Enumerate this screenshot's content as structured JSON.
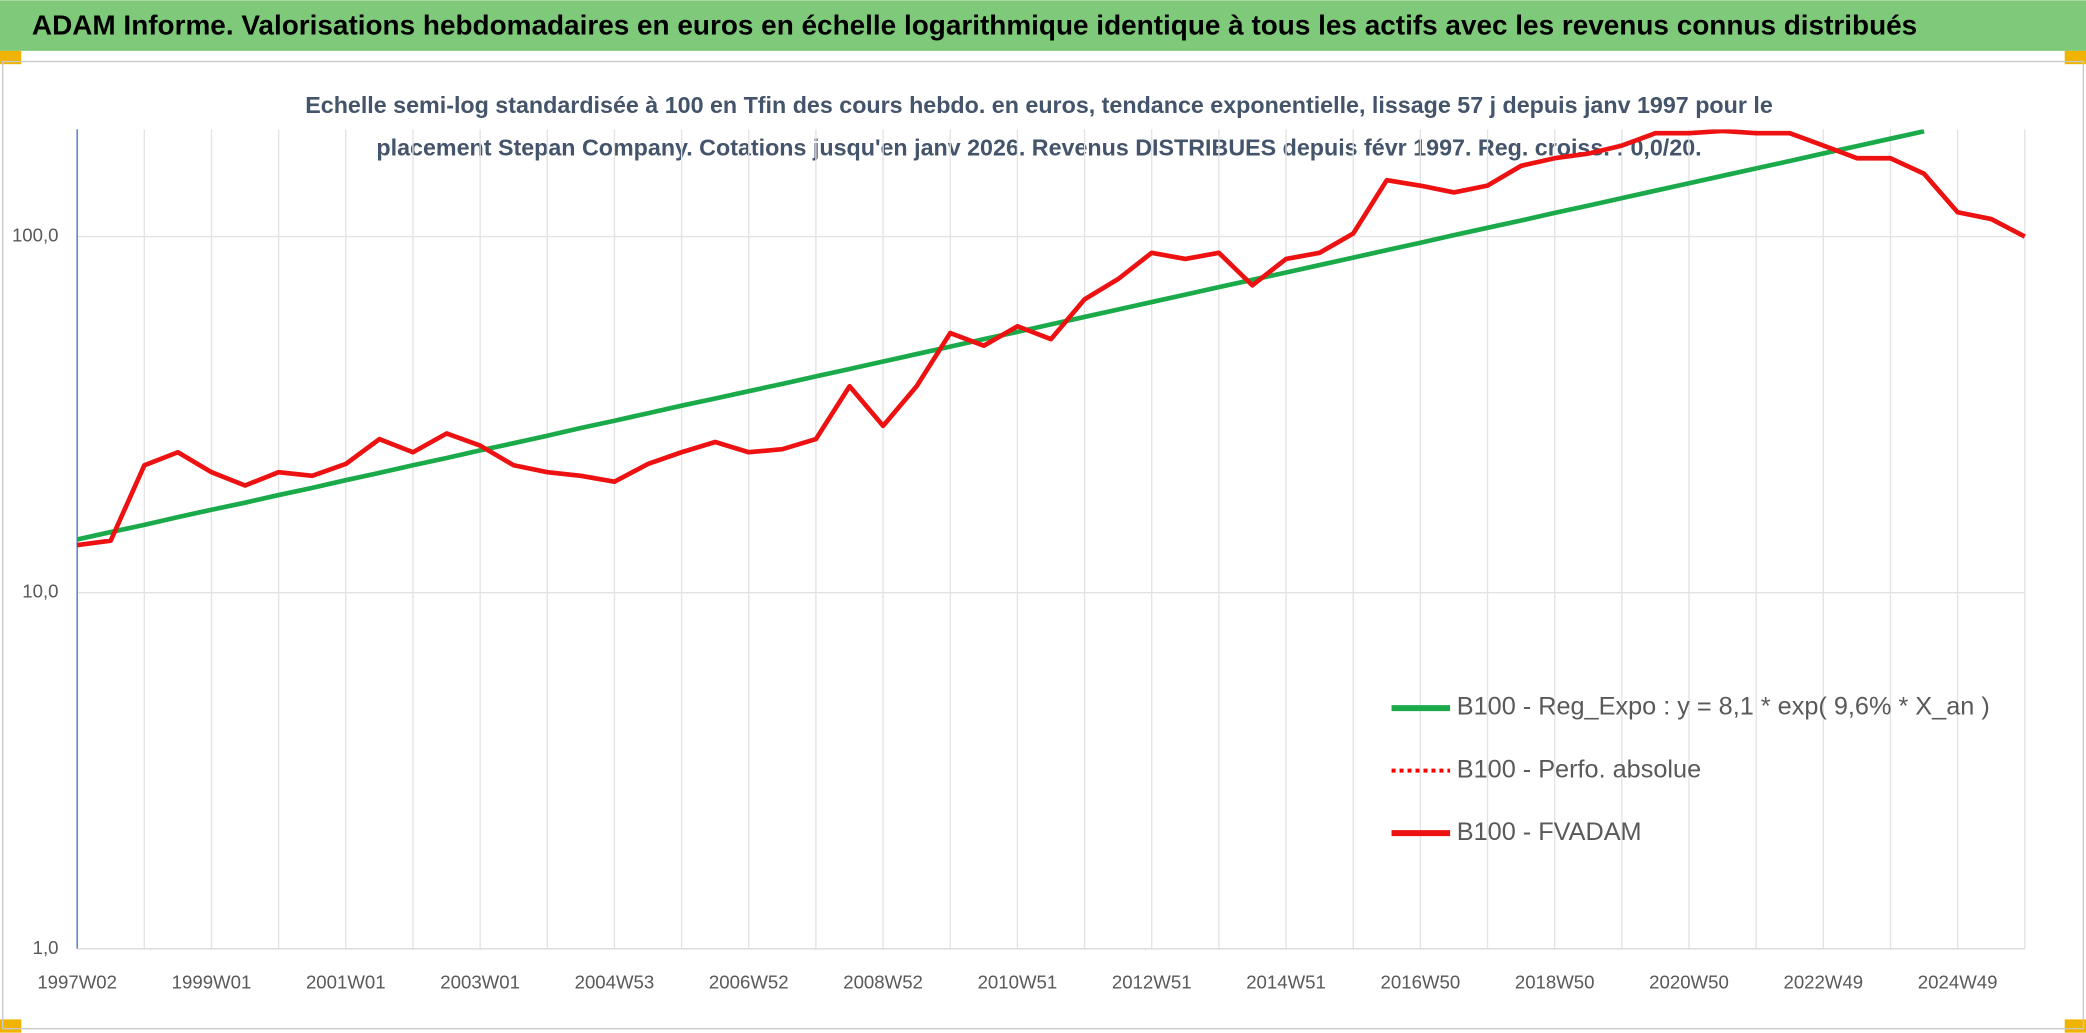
{
  "chart_data": {
    "type": "line",
    "title": "ADAM Informe. Valorisations hebdomadaires en euros en échelle logarithmique identique à tous les actifs avec les revenus connus distribués",
    "subtitle": [
      "Echelle semi-log standardisée à 100 en Tfin des cours hebdo. en euros, tendance exponentielle, lissage 57 j depuis janv 1997 pour le",
      "placement Stepan Company. Cotations jusqu'en janv 2026. Revenus DISTRIBUES depuis févr 1997. Reg. croiss. : 0,0/20."
    ],
    "log_scale": true,
    "grid": true,
    "legend": "lower right",
    "ylim": [
      1,
      200
    ],
    "yticks": [
      {
        "value": 1,
        "label": "1,0"
      },
      {
        "value": 10,
        "label": "10,0"
      },
      {
        "value": 100,
        "label": "100,0"
      }
    ],
    "categories": [
      "1997W02",
      null,
      null,
      null,
      "1999W01",
      null,
      null,
      null,
      "2001W01",
      null,
      null,
      null,
      "2003W01",
      null,
      null,
      null,
      "2004W53",
      null,
      null,
      null,
      "2006W52",
      null,
      null,
      null,
      "2008W52",
      null,
      null,
      null,
      "2010W51",
      null,
      null,
      null,
      "2012W51",
      null,
      null,
      null,
      "2014W51",
      null,
      null,
      null,
      "2016W50",
      null,
      null,
      null,
      "2018W50",
      null,
      null,
      null,
      "2020W50",
      null,
      null,
      null,
      "2022W49",
      null,
      null,
      null,
      "2024W49",
      null,
      null
    ],
    "series": [
      {
        "name": "B100 - Reg_Expo : y = 8,1 * exp( 9,6% *  X_an )",
        "color": "#1aaa4a",
        "style": "solid",
        "values": [
          14.1,
          14.8,
          15.5,
          16.3,
          17.1,
          17.9,
          18.8,
          19.7,
          20.7,
          21.7,
          22.8,
          23.9,
          25.1,
          26.3,
          27.6,
          29.0,
          30.4,
          31.9,
          33.5,
          35.1,
          36.8,
          38.6,
          40.5,
          42.5,
          44.6,
          46.8,
          49.1,
          51.5,
          54.0,
          56.7,
          59.5,
          62.4,
          65.5,
          68.7,
          72.1,
          75.6,
          79.3,
          83.2,
          87.3,
          91.6,
          96.1,
          100.9,
          105.8,
          111.0,
          116.5,
          122.2,
          128.2,
          134.5,
          141.2,
          148.1,
          155.4,
          163.0,
          171.1,
          179.5,
          188.3,
          197.6,
          null,
          null,
          null
        ]
      },
      {
        "name": "B100 - Perfo. absolue",
        "color": "#ff0000",
        "style": "dotted",
        "values": [
          13.6,
          14,
          22.8,
          24.8,
          21.8,
          20,
          21.8,
          21.3,
          23,
          27,
          24.8,
          28,
          25.9,
          22.8,
          21.8,
          21.3,
          20.5,
          23,
          24.8,
          26.5,
          24.8,
          25.3,
          27,
          38,
          29.4,
          38,
          53.6,
          49.4,
          56,
          51.5,
          66.6,
          76,
          90,
          86.5,
          90,
          73,
          86.5,
          90,
          102,
          144,
          139,
          133,
          139,
          158,
          166,
          171,
          180,
          195,
          195,
          198,
          195,
          195,
          180,
          166,
          166,
          150,
          117,
          112,
          100
        ]
      },
      {
        "name": "B100 - FVADAM",
        "color": "#ee1111",
        "style": "solid",
        "values": [
          13.6,
          14,
          22.8,
          24.8,
          21.8,
          20,
          21.8,
          21.3,
          23,
          27,
          24.8,
          28,
          25.9,
          22.8,
          21.8,
          21.3,
          20.5,
          23,
          24.8,
          26.5,
          24.8,
          25.3,
          27,
          38,
          29.4,
          38,
          53.6,
          49.4,
          56,
          51.5,
          66.6,
          76,
          90,
          86.5,
          90,
          73,
          86.5,
          90,
          102,
          144,
          139,
          133,
          139,
          158,
          166,
          171,
          180,
          195,
          195,
          198,
          195,
          195,
          180,
          166,
          166,
          150,
          117,
          112,
          100
        ]
      }
    ]
  }
}
